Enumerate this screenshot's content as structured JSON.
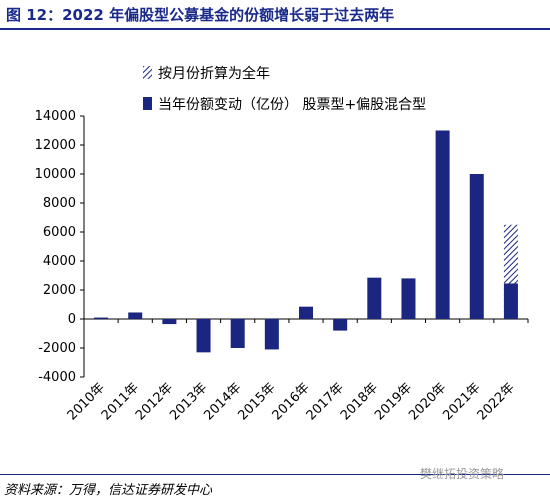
{
  "header": {
    "title": "图  12：2022 年偏股型公募基金的份额增长弱于过去两年"
  },
  "footer": {
    "source": "资料来源：万得，信达证券研发中心",
    "watermark": "樊继拓投资策略"
  },
  "colors": {
    "title": "#1a2a8a",
    "bar": "#1a2680",
    "hatch": "#1a2680"
  },
  "chart_data": {
    "type": "bar",
    "categories": [
      "2010年",
      "2011年",
      "2012年",
      "2013年",
      "2014年",
      "2015年",
      "2016年",
      "2017年",
      "2018年",
      "2019年",
      "2020年",
      "2021年",
      "2022年"
    ],
    "series": [
      {
        "name": "当年份额变动（亿份） 股票型+偏股混合型",
        "values": [
          100,
          450,
          -350,
          -2300,
          -2000,
          -2100,
          850,
          -800,
          2850,
          2800,
          13000,
          10000,
          2450
        ],
        "style": "solid"
      },
      {
        "name": "按月份折算为全年",
        "values": [
          null,
          null,
          null,
          null,
          null,
          null,
          null,
          null,
          null,
          null,
          null,
          null,
          6500
        ],
        "style": "hatched"
      }
    ],
    "ylim": [
      -4000,
      14000
    ],
    "yticks": [
      -4000,
      -2000,
      0,
      2000,
      4000,
      6000,
      8000,
      10000,
      12000,
      14000
    ],
    "legend_position": "top-left",
    "grid": false
  }
}
